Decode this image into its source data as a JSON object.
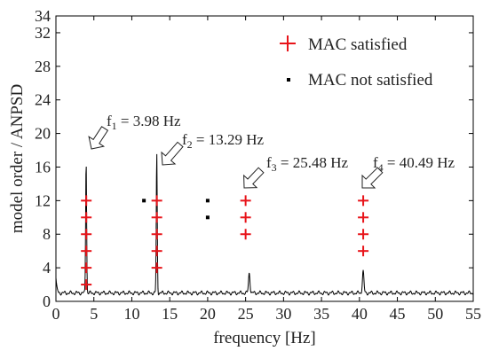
{
  "chart_data": {
    "type": "scatter",
    "xlabel": "frequency [Hz]",
    "ylabel": "model order / ANPSD",
    "xlim": [
      0,
      55
    ],
    "ylim": [
      0,
      34
    ],
    "xticks": [
      0,
      5,
      10,
      15,
      20,
      25,
      30,
      35,
      40,
      45,
      50,
      55
    ],
    "yticks": [
      0,
      4,
      8,
      12,
      16,
      20,
      24,
      28,
      32,
      34
    ],
    "grid": false,
    "legend_position": "top-right",
    "series": [
      {
        "name": "MAC satisfied",
        "marker": "plus",
        "color": "#e8141a",
        "points": [
          [
            4.0,
            2
          ],
          [
            4.0,
            4
          ],
          [
            4.0,
            6
          ],
          [
            4.0,
            8
          ],
          [
            4.0,
            10
          ],
          [
            4.0,
            12
          ],
          [
            13.3,
            4
          ],
          [
            13.3,
            6
          ],
          [
            13.3,
            8
          ],
          [
            13.3,
            10
          ],
          [
            13.3,
            12
          ],
          [
            25.0,
            8
          ],
          [
            25.0,
            10
          ],
          [
            25.0,
            12
          ],
          [
            40.5,
            6
          ],
          [
            40.5,
            8
          ],
          [
            40.5,
            10
          ],
          [
            40.5,
            12
          ]
        ]
      },
      {
        "name": "MAC not satisfied",
        "marker": "square",
        "color": "#000000",
        "points": [
          [
            11.6,
            12
          ],
          [
            20.0,
            10
          ],
          [
            20.0,
            12
          ]
        ]
      },
      {
        "name": "ANPSD",
        "type": "line",
        "color": "#000000",
        "baseline": 1.0,
        "peaks": [
          {
            "f": 3.98,
            "value": 17.0
          },
          {
            "f": 13.29,
            "value": 17.6
          },
          {
            "f": 25.48,
            "value": 3.4
          },
          {
            "f": 40.49,
            "value": 3.6
          }
        ]
      }
    ],
    "annotations": [
      {
        "sym": "f",
        "sub": "1",
        "text": " = 3.98 Hz",
        "x": 3.98
      },
      {
        "sym": "f",
        "sub": "2",
        "text": " = 13.29 Hz",
        "x": 13.29
      },
      {
        "sym": "f",
        "sub": "3",
        "text": " = 25.48 Hz",
        "x": 25.48
      },
      {
        "sym": "f",
        "sub": "4",
        "text": " = 40.49 Hz",
        "x": 40.49
      }
    ]
  }
}
